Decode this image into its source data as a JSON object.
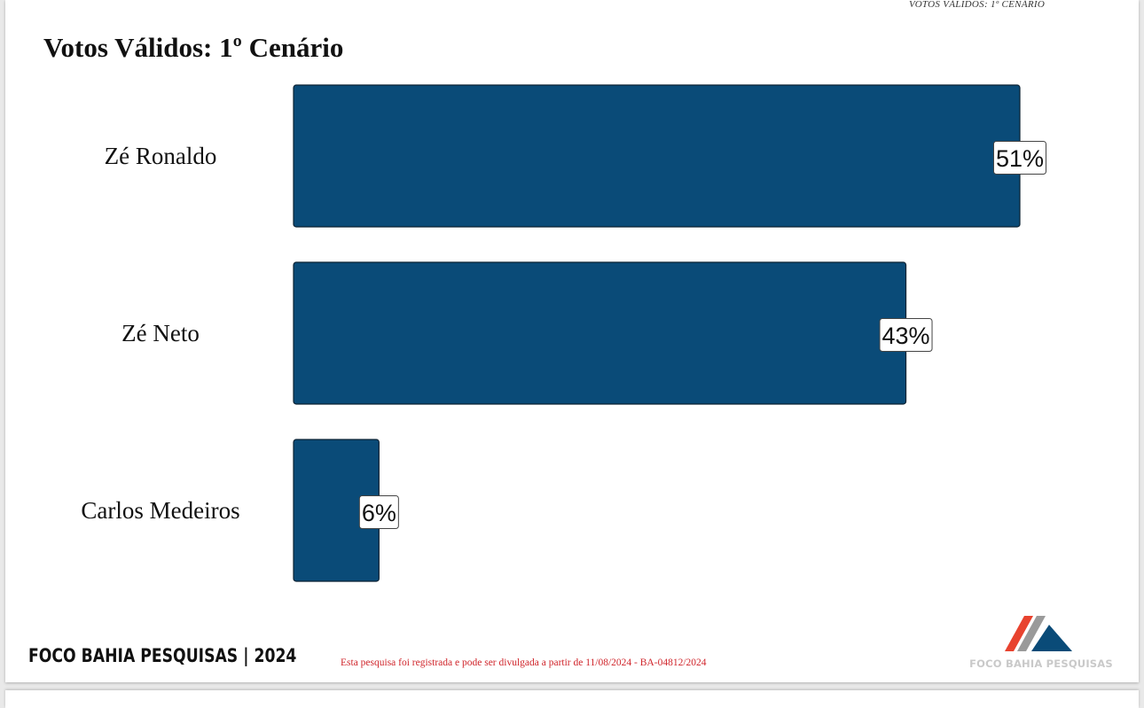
{
  "header": {
    "tag": "VOTOS VÁLIDOS: 1º CENÁRIO",
    "title": "Votos Válidos: 1º Cenário"
  },
  "chart_data": {
    "type": "bar",
    "orientation": "horizontal",
    "title": "Votos Válidos: 1º Cenário",
    "categories": [
      "Zé Ronaldo",
      "Zé Neto",
      "Carlos Medeiros"
    ],
    "values": [
      51,
      43,
      6
    ],
    "value_labels": [
      "51%",
      "43%",
      "6%"
    ],
    "unit": "%",
    "xlim": [
      0,
      51
    ],
    "bar_color": "#0a4b78",
    "grid": false,
    "legend": "none"
  },
  "footer": {
    "brand": "FOCO BAHIA PESQUISAS | 2024",
    "note": "Esta pesquisa foi registrada e pode ser divulgada a partir de 11/08/2024 - BA-04812/2024",
    "logo_text": "FOCO BAHIA PESQUISAS",
    "logo_colors": {
      "red": "#e8432f",
      "gray": "#9a9a9a",
      "blue": "#0a4b78"
    }
  }
}
